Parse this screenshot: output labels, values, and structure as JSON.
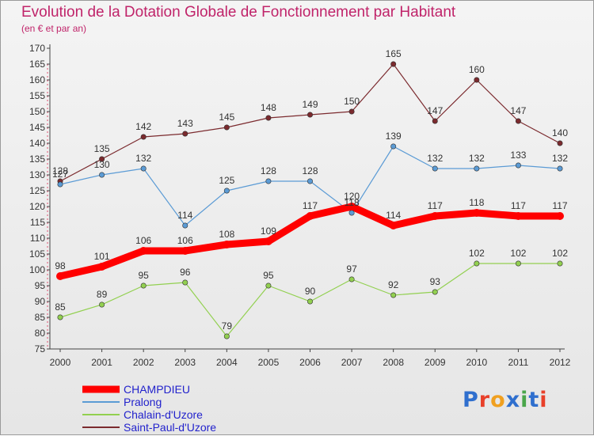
{
  "title": "Evolution de la Dotation Globale de Fonctionnement par Habitant",
  "subtitle": "(en € et par an)",
  "logo": {
    "text": "Proxiti",
    "colors": [
      "#2f6fce",
      "#e8402a",
      "#f0a020",
      "#2f6fce",
      "#4aa64a",
      "#2f6fce",
      "#e8402a"
    ]
  },
  "colors": {
    "CHAMPDIEU": "#ff0000",
    "Pralong": "#5b9bd5",
    "Chalain-d'Uzore": "#92d050",
    "Saint-Paul-d'Uzore": "#7b2a2e",
    "title": "#c0246a"
  },
  "chart_data": {
    "type": "line",
    "x": [
      "2000",
      "2001",
      "2002",
      "2003",
      "2004",
      "2005",
      "2006",
      "2007",
      "2008",
      "2009",
      "2010",
      "2011",
      "2012"
    ],
    "yticks": [
      75,
      80,
      85,
      90,
      95,
      100,
      105,
      110,
      115,
      120,
      125,
      130,
      135,
      140,
      145,
      150,
      155,
      160,
      165,
      170
    ],
    "ylim": [
      75,
      170
    ],
    "grid": false,
    "legend": "bottom-left",
    "series": [
      {
        "name": "CHAMPDIEU",
        "values": [
          98,
          101,
          106,
          106,
          108,
          109,
          117,
          120,
          114,
          117,
          118,
          117,
          117
        ]
      },
      {
        "name": "Pralong",
        "values": [
          127,
          130,
          132,
          114,
          125,
          128,
          128,
          118,
          139,
          132,
          132,
          133,
          132
        ]
      },
      {
        "name": "Chalain-d'Uzore",
        "values": [
          85,
          89,
          95,
          96,
          79,
          95,
          90,
          97,
          92,
          93,
          102,
          102,
          102
        ]
      },
      {
        "name": "Saint-Paul-d'Uzore",
        "values": [
          128,
          135,
          142,
          143,
          145,
          148,
          149,
          150,
          165,
          147,
          160,
          147,
          140
        ]
      }
    ]
  }
}
